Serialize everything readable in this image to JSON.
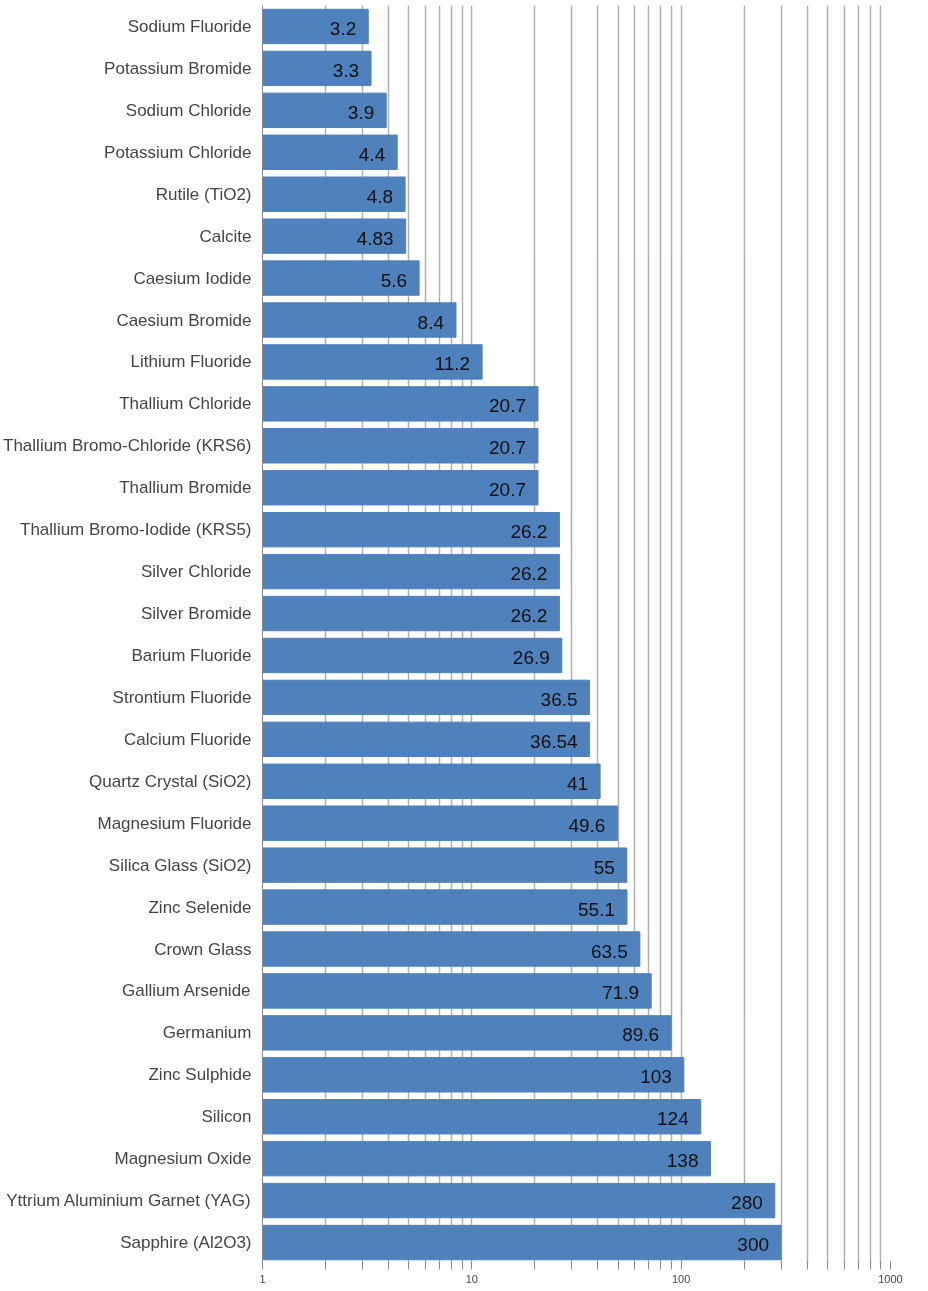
{
  "chart_data": {
    "type": "bar",
    "orientation": "horizontal",
    "log": "x",
    "grid": "x",
    "data_labels": true,
    "color": "#4f81bd",
    "categories": [
      "Sodium Fluoride",
      "Potassium Bromide",
      "Sodium Chloride",
      "Potassium Chloride",
      "Rutile (TiO2)",
      "Calcite",
      "Caesium Iodide",
      "Caesium Bromide",
      "Lithium Fluoride",
      "Thallium Chloride",
      "Thallium Bromo-Chloride (KRS6)",
      "Thallium Bromide",
      "Thallium Bromo-Iodide (KRS5)",
      "Silver Chloride",
      "Silver Bromide",
      "Barium Fluoride",
      "Strontium Fluoride",
      "Calcium Fluoride",
      "Quartz Crystal (SiO2)",
      "Magnesium Fluoride",
      "Silica Glass (SiO2)",
      "Zinc Selenide",
      "Crown Glass",
      "Gallium Arsenide",
      "Germanium",
      "Zinc Sulphide",
      "Silicon",
      "Magnesium Oxide",
      "Yttrium Aluminium Garnet (YAG)",
      "Sapphire (Al2O3)"
    ],
    "values": [
      3.2,
      3.3,
      3.9,
      4.4,
      4.8,
      4.83,
      5.6,
      8.4,
      11.2,
      20.7,
      20.7,
      20.7,
      26.2,
      26.2,
      26.2,
      26.9,
      36.5,
      36.54,
      41,
      49.6,
      55,
      55.1,
      63.5,
      71.9,
      89.6,
      103,
      124,
      138,
      280,
      300
    ],
    "xlim": [
      1,
      1000
    ],
    "xticks": [
      1,
      {
        "value": 2,
        "label": null
      },
      {
        "value": 3,
        "label": null
      },
      {
        "value": 4,
        "label": null
      },
      {
        "value": 5,
        "label": null
      },
      {
        "value": 6,
        "label": null
      },
      {
        "value": 7,
        "label": null
      },
      {
        "value": 8,
        "label": null
      },
      {
        "value": 9,
        "label": null
      },
      10,
      {
        "value": 20,
        "label": null
      },
      {
        "value": 30,
        "label": null
      },
      {
        "value": 40,
        "label": null
      },
      {
        "value": 50,
        "label": null
      },
      {
        "value": 60,
        "label": null
      },
      {
        "value": 70,
        "label": null
      },
      {
        "value": 80,
        "label": null
      },
      {
        "value": 90,
        "label": null
      },
      100,
      {
        "value": 200,
        "label": null
      },
      {
        "value": 300,
        "label": null
      },
      {
        "value": 400,
        "label": null
      },
      {
        "value": 500,
        "label": null
      },
      {
        "value": 600,
        "label": null
      },
      {
        "value": 700,
        "label": null
      },
      {
        "value": 800,
        "label": null
      },
      {
        "value": 900,
        "label": null
      },
      1000
    ]
  }
}
